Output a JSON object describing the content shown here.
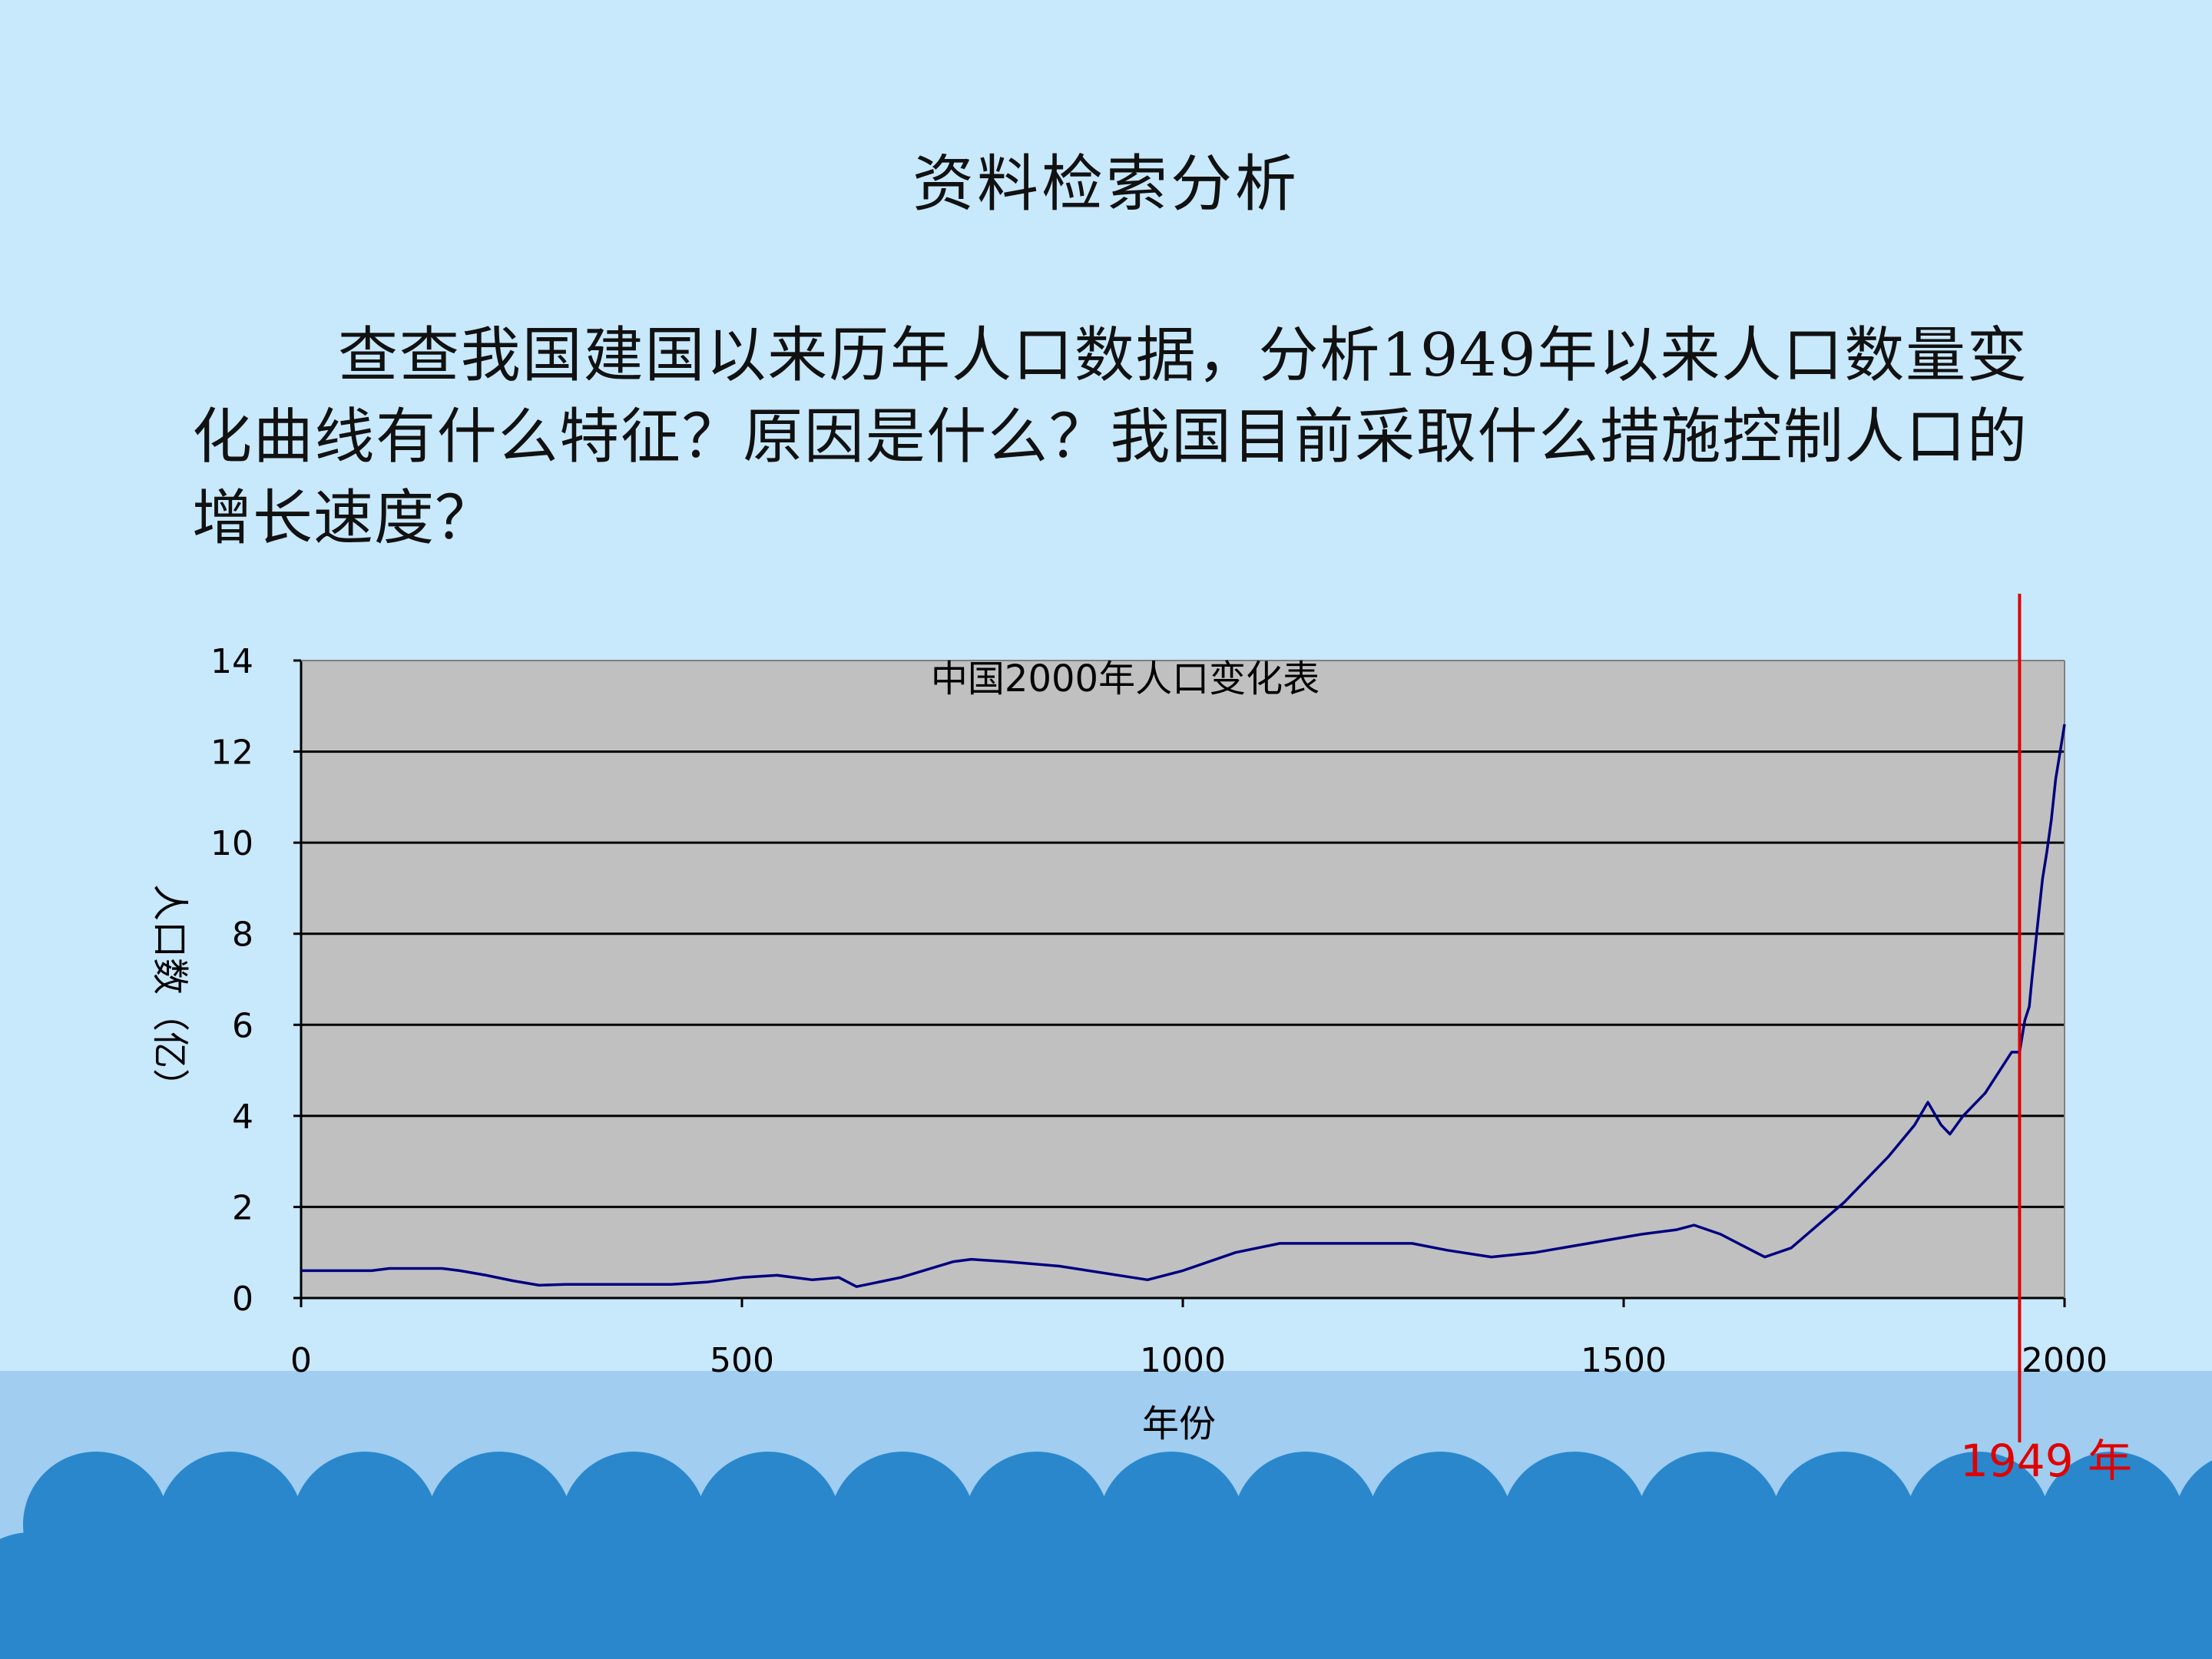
{
  "slide": {
    "title": "资料检索分析",
    "body": "查查我国建国以来历年人口数据，分析1949年以来人口数量变化曲线有什么特征？原因是什么？我国目前采取什么措施控制人口的增长速度？",
    "annotation": "1949 年",
    "colors": {
      "background": "#c8e8fb",
      "sea": "#a0cdf0",
      "wave": "#2a87cc",
      "marker": "#e00000"
    }
  },
  "chart_data": {
    "type": "line",
    "title": "中国2000年人口变化表",
    "xlabel": "年份",
    "ylabel": "人口数（亿）",
    "xlim": [
      0,
      2000
    ],
    "ylim": [
      0,
      14
    ],
    "x_ticks": [
      0,
      500,
      1000,
      1500,
      2000
    ],
    "y_ticks": [
      0,
      2,
      4,
      6,
      8,
      10,
      12,
      14
    ],
    "grid": "horizontal",
    "plot_background": "#c0c0c0",
    "series": [
      {
        "color": "#000080",
        "points": [
          [
            0,
            0.6
          ],
          [
            80,
            0.6
          ],
          [
            100,
            0.65
          ],
          [
            160,
            0.65
          ],
          [
            180,
            0.6
          ],
          [
            210,
            0.5
          ],
          [
            240,
            0.38
          ],
          [
            270,
            0.28
          ],
          [
            300,
            0.3
          ],
          [
            350,
            0.3
          ],
          [
            420,
            0.3
          ],
          [
            460,
            0.35
          ],
          [
            500,
            0.45
          ],
          [
            540,
            0.5
          ],
          [
            580,
            0.4
          ],
          [
            610,
            0.45
          ],
          [
            630,
            0.25
          ],
          [
            680,
            0.45
          ],
          [
            740,
            0.8
          ],
          [
            760,
            0.85
          ],
          [
            800,
            0.8
          ],
          [
            860,
            0.7
          ],
          [
            960,
            0.4
          ],
          [
            1000,
            0.6
          ],
          [
            1060,
            1.0
          ],
          [
            1110,
            1.2
          ],
          [
            1160,
            1.2
          ],
          [
            1200,
            1.2
          ],
          [
            1260,
            1.2
          ],
          [
            1300,
            1.05
          ],
          [
            1350,
            0.9
          ],
          [
            1400,
            1.0
          ],
          [
            1460,
            1.2
          ],
          [
            1520,
            1.4
          ],
          [
            1560,
            1.5
          ],
          [
            1580,
            1.6
          ],
          [
            1610,
            1.4
          ],
          [
            1640,
            1.1
          ],
          [
            1660,
            0.9
          ],
          [
            1690,
            1.1
          ],
          [
            1750,
            2.1
          ],
          [
            1800,
            3.1
          ],
          [
            1830,
            3.8
          ],
          [
            1845,
            4.3
          ],
          [
            1860,
            3.8
          ],
          [
            1870,
            3.6
          ],
          [
            1885,
            4.0
          ],
          [
            1910,
            4.5
          ],
          [
            1940,
            5.4
          ],
          [
            1949,
            5.4
          ],
          [
            1955,
            6.1
          ],
          [
            1960,
            6.4
          ],
          [
            1963,
            7.0
          ],
          [
            1970,
            8.3
          ],
          [
            1975,
            9.2
          ],
          [
            1980,
            9.8
          ],
          [
            1985,
            10.5
          ],
          [
            1990,
            11.4
          ],
          [
            1995,
            12.0
          ],
          [
            2000,
            12.6
          ]
        ]
      }
    ],
    "annotations": [
      {
        "x": 1949,
        "label": "1949 年",
        "color": "#e00000"
      }
    ]
  }
}
